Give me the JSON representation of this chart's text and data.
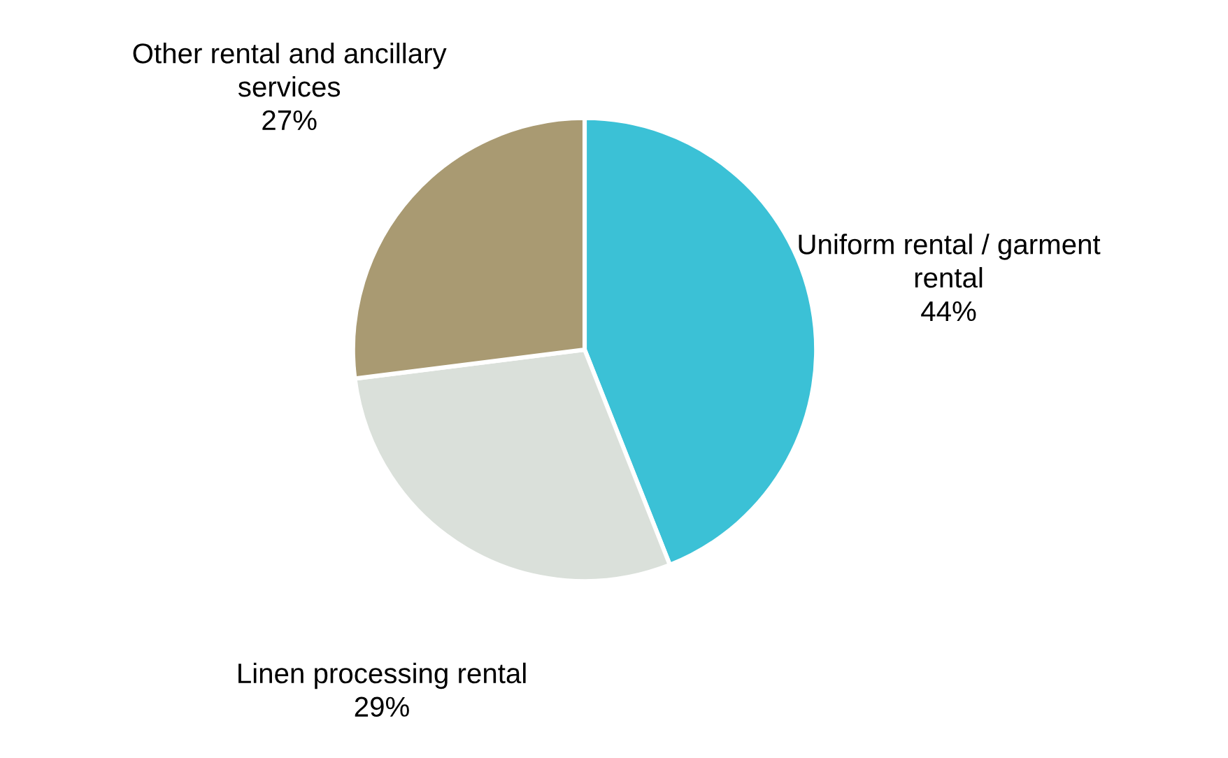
{
  "chart_data": {
    "type": "pie",
    "categories": [
      "Uniform rental / garment\nrental",
      "Linen processing rental",
      "Other rental and ancillary\nservices"
    ],
    "values": [
      44,
      29,
      27
    ],
    "colors": [
      "#3bc1d6",
      "#dae0da",
      "#a99a72"
    ],
    "value_labels": [
      "44%",
      "29%",
      "27%"
    ],
    "legend": false
  }
}
